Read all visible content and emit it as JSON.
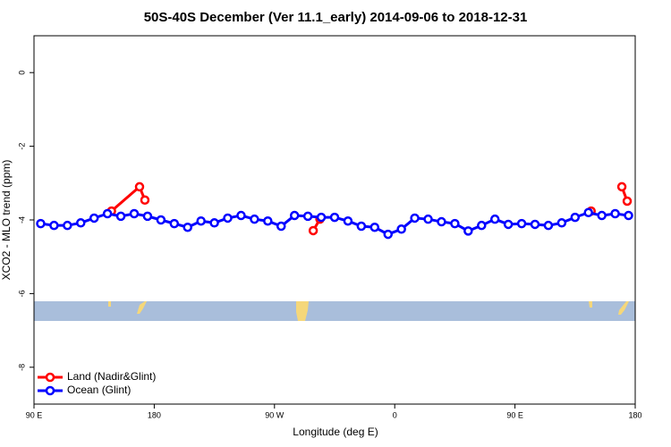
{
  "chart_data": {
    "type": "line",
    "title": "50S-40S December (Ver 11.1_early)   2014-09-06 to 2018-12-31",
    "xlabel": "Longitude (deg E)",
    "ylabel": "XCO2 - MLO trend (ppm)",
    "xlim": [
      90,
      540
    ],
    "xticks": [
      {
        "value": 90,
        "label": "90 E"
      },
      {
        "value": 180,
        "label": "180"
      },
      {
        "value": 270,
        "label": "90 W"
      },
      {
        "value": 360,
        "label": "0"
      },
      {
        "value": 450,
        "label": "90 E"
      },
      {
        "value": 540,
        "label": "180"
      }
    ],
    "ylim": [
      -9,
      1
    ],
    "yticks": [
      0,
      -2,
      -4,
      -6,
      -8
    ],
    "legend": "bottom-left",
    "series": [
      {
        "name": "Land (Nadir&Glint)",
        "color": "#ff0000",
        "x": [
          148,
          169,
          173,
          236,
          299,
          304,
          400,
          507,
          520,
          530,
          534
        ],
        "values": [
          -3.76,
          -3.1,
          -3.46,
          null,
          -4.29,
          -3.98,
          null,
          -3.76,
          null,
          -3.1,
          -3.49
        ]
      },
      {
        "name": "Ocean (Glint)",
        "color": "#0000ff",
        "x": [
          95,
          105,
          115,
          125,
          135,
          145,
          155,
          165,
          175,
          185,
          195,
          205,
          215,
          225,
          235,
          245,
          255,
          265,
          275,
          285,
          295,
          305,
          315,
          325,
          335,
          345,
          355,
          365,
          375,
          385,
          395,
          405,
          415,
          425,
          435,
          445,
          455,
          465,
          475,
          485,
          495,
          505,
          515,
          525,
          535
        ],
        "values": [
          -4.1,
          -4.15,
          -4.15,
          -4.08,
          -3.95,
          -3.83,
          -3.9,
          -3.83,
          -3.9,
          -4.0,
          -4.1,
          -4.2,
          -4.03,
          -4.08,
          -3.95,
          -3.88,
          -3.98,
          -4.03,
          -4.17,
          -3.88,
          -3.9,
          -3.93,
          -3.93,
          -4.03,
          -4.17,
          -4.2,
          -4.39,
          -4.25,
          -3.95,
          -3.98,
          -4.05,
          -4.1,
          -4.3,
          -4.15,
          -3.98,
          -4.12,
          -4.1,
          -4.12,
          -4.15,
          -4.08,
          -3.93,
          -3.8,
          -3.88,
          -3.83,
          -3.88
        ]
      }
    ]
  }
}
